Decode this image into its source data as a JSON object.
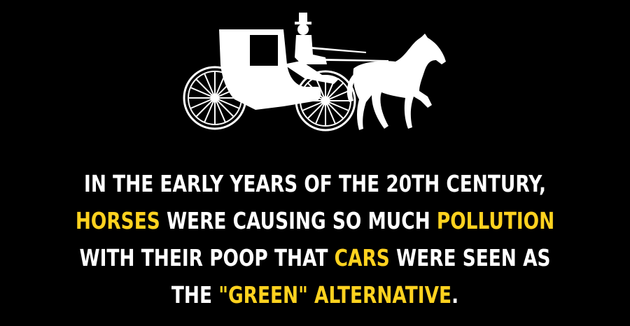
{
  "colors": {
    "background": "#000000",
    "text": "#ffffff",
    "highlight": "#ffd21f"
  },
  "illustration": {
    "icon": "horse-drawn-carriage-icon"
  },
  "caption": {
    "line1": {
      "text": "IN THE EARLY YEARS OF THE 20TH CENTURY,"
    },
    "line2": {
      "hl1": "HORSES",
      "mid": " WERE CAUSING SO MUCH ",
      "hl2": "POLLUTION"
    },
    "line3": {
      "pre": "WITH THEIR POOP THAT ",
      "hl": "CARS",
      "post": " WERE SEEN AS"
    },
    "line4": {
      "pre": "THE ",
      "hl": "\"GREEN\" ALTERNATIVE",
      "post": "."
    }
  }
}
